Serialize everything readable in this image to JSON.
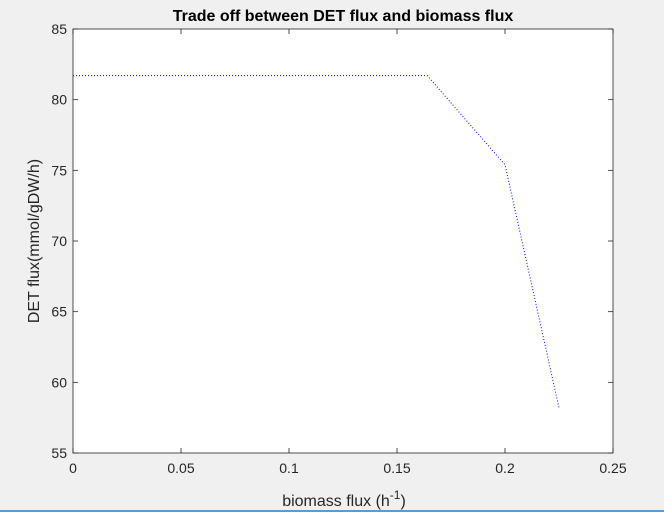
{
  "chart_data": {
    "type": "line",
    "title": "Trade off between DET flux and biomass flux",
    "xlabel": "biomass flux (h",
    "xlabel_superscript": "-1",
    "xlabel_suffix": ")",
    "ylabel": "DET flux(mmol/gDW/h)",
    "xlim": [
      0,
      0.25
    ],
    "ylim": [
      55,
      85
    ],
    "xticks": [
      0,
      0.05,
      0.1,
      0.15,
      0.2,
      0.25
    ],
    "xtick_labels": [
      "0",
      "0.05",
      "0.1",
      "0.15",
      "0.2",
      "0.25"
    ],
    "yticks": [
      55,
      60,
      65,
      70,
      75,
      80,
      85
    ],
    "ytick_labels": [
      "55",
      "60",
      "65",
      "70",
      "75",
      "80",
      "85"
    ],
    "grid": false,
    "series": [
      {
        "x": [
          0,
          0.164,
          0.2,
          0.225
        ],
        "y": [
          81.7,
          81.7,
          75.4,
          58.2
        ],
        "color": "#0000ff",
        "line_style": "dotted"
      }
    ]
  }
}
